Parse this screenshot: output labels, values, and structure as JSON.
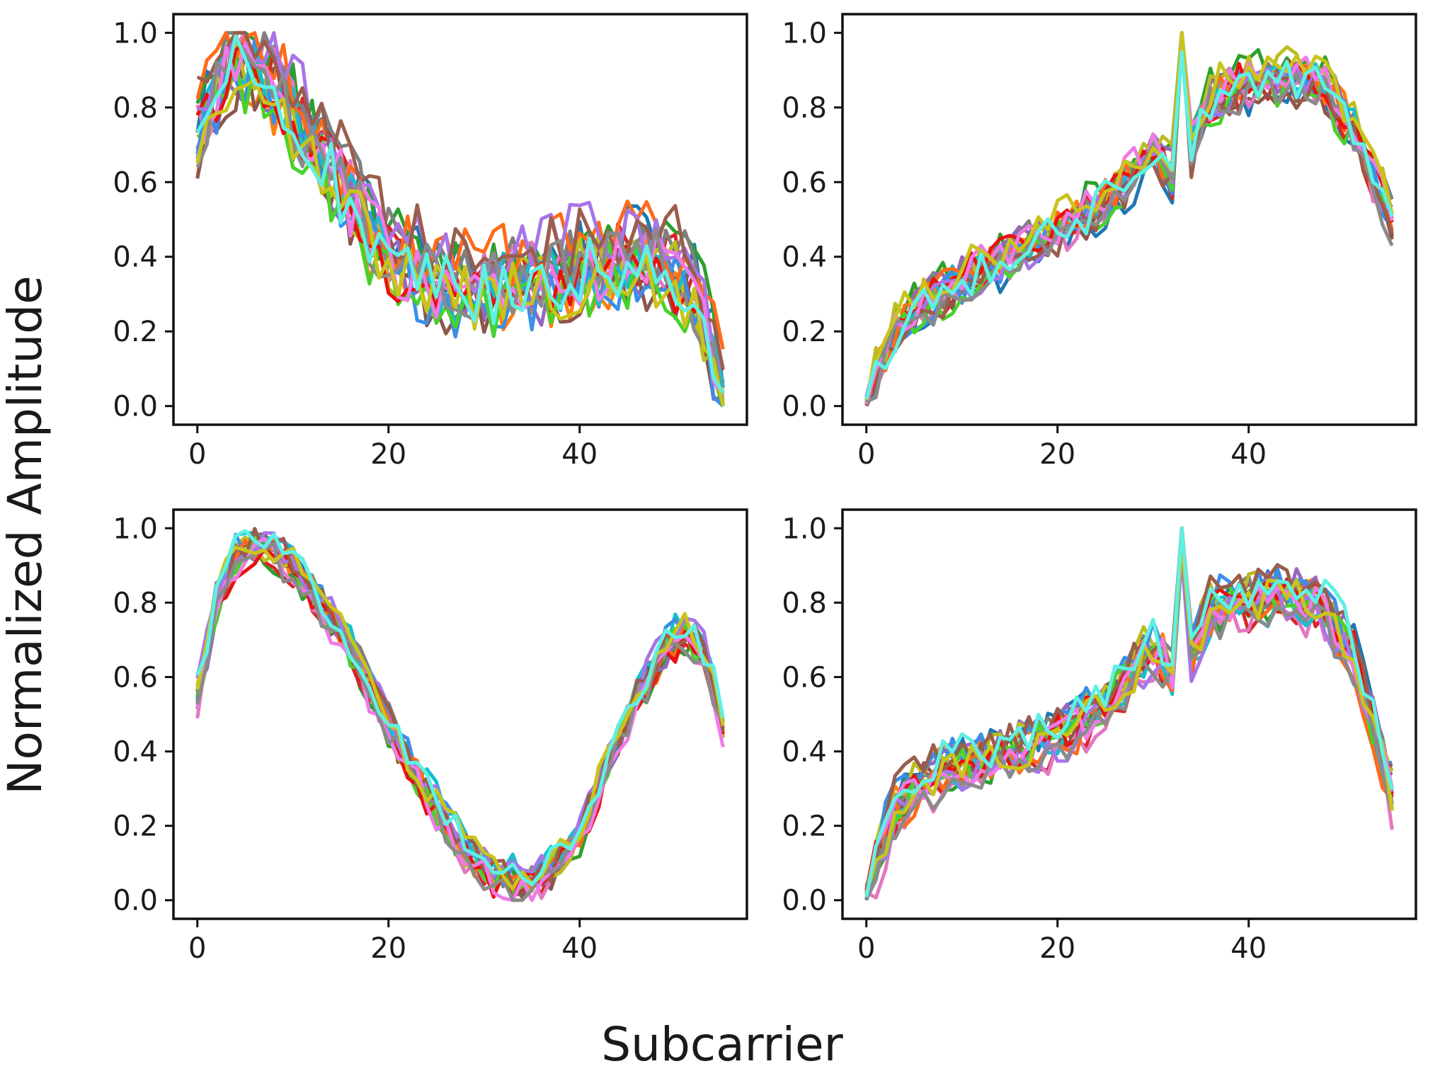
{
  "figure": {
    "xlabel": "Subcarrier",
    "ylabel": "Normalized Amplitude"
  },
  "colors": [
    "#1f77b4",
    "#ff7f0e",
    "#2ca02c",
    "#d62728",
    "#9467bd",
    "#8c564b",
    "#e377c2",
    "#7f7f7f",
    "#bcbd22",
    "#17becf",
    "#3a8fe8",
    "#ff6a1a",
    "#48d12c",
    "#e8120c",
    "#a875e8",
    "#9a5d4c",
    "#f07ae8",
    "#8a8a8a",
    "#c9c41a",
    "#5ff0e4"
  ],
  "chart_data": [
    {
      "type": "line",
      "panel": "top-left",
      "xlim": [
        -2.5,
        57.5
      ],
      "ylim": [
        -0.05,
        1.05
      ],
      "xticks": [
        0,
        20,
        40
      ],
      "yticks": [
        0.0,
        0.2,
        0.4,
        0.6,
        0.8,
        1.0
      ],
      "x_range": [
        0,
        55
      ],
      "n_series": 20,
      "series_mean_profile": [
        [
          0,
          0.76
        ],
        [
          3,
          0.93
        ],
        [
          6,
          0.95
        ],
        [
          9,
          0.84
        ],
        [
          12,
          0.72
        ],
        [
          15,
          0.62
        ],
        [
          18,
          0.48
        ],
        [
          21,
          0.4
        ],
        [
          24,
          0.36
        ],
        [
          27,
          0.33
        ],
        [
          30,
          0.33
        ],
        [
          33,
          0.35
        ],
        [
          36,
          0.36
        ],
        [
          39,
          0.38
        ],
        [
          42,
          0.4
        ],
        [
          45,
          0.41
        ],
        [
          48,
          0.4
        ],
        [
          51,
          0.36
        ],
        [
          53,
          0.25
        ],
        [
          55,
          0.03
        ]
      ],
      "spread": 0.09
    },
    {
      "type": "line",
      "panel": "top-right",
      "xlim": [
        -2.5,
        57.5
      ],
      "ylim": [
        -0.05,
        1.05
      ],
      "xticks": [
        0,
        20,
        40
      ],
      "yticks": [
        0.0,
        0.2,
        0.4,
        0.6,
        0.8,
        1.0
      ],
      "x_range": [
        0,
        55
      ],
      "n_series": 20,
      "series_mean_profile": [
        [
          0,
          0.02
        ],
        [
          3,
          0.2
        ],
        [
          6,
          0.27
        ],
        [
          9,
          0.32
        ],
        [
          12,
          0.36
        ],
        [
          15,
          0.4
        ],
        [
          18,
          0.44
        ],
        [
          21,
          0.48
        ],
        [
          24,
          0.53
        ],
        [
          27,
          0.6
        ],
        [
          30,
          0.68
        ],
        [
          32,
          0.62
        ],
        [
          33,
          1.0
        ],
        [
          34,
          0.68
        ],
        [
          36,
          0.82
        ],
        [
          40,
          0.86
        ],
        [
          44,
          0.88
        ],
        [
          48,
          0.85
        ],
        [
          51,
          0.74
        ],
        [
          55,
          0.5
        ]
      ],
      "spread": 0.05
    },
    {
      "type": "line",
      "panel": "bottom-left",
      "xlim": [
        -2.5,
        57.5
      ],
      "ylim": [
        -0.05,
        1.05
      ],
      "xticks": [
        0,
        20,
        40
      ],
      "yticks": [
        0.0,
        0.2,
        0.4,
        0.6,
        0.8,
        1.0
      ],
      "x_range": [
        0,
        55
      ],
      "n_series": 20,
      "series_mean_profile": [
        [
          0,
          0.55
        ],
        [
          2,
          0.8
        ],
        [
          4,
          0.93
        ],
        [
          7,
          0.96
        ],
        [
          10,
          0.9
        ],
        [
          13,
          0.8
        ],
        [
          16,
          0.68
        ],
        [
          19,
          0.52
        ],
        [
          22,
          0.38
        ],
        [
          25,
          0.25
        ],
        [
          28,
          0.14
        ],
        [
          31,
          0.07
        ],
        [
          34,
          0.05
        ],
        [
          37,
          0.08
        ],
        [
          40,
          0.18
        ],
        [
          43,
          0.38
        ],
        [
          46,
          0.55
        ],
        [
          49,
          0.68
        ],
        [
          51,
          0.72
        ],
        [
          53,
          0.66
        ],
        [
          55,
          0.48
        ]
      ],
      "spread": 0.04
    },
    {
      "type": "line",
      "panel": "bottom-right",
      "xlim": [
        -2.5,
        57.5
      ],
      "ylim": [
        -0.05,
        1.05
      ],
      "xticks": [
        0,
        20,
        40
      ],
      "yticks": [
        0.0,
        0.2,
        0.4,
        0.6,
        0.8,
        1.0
      ],
      "x_range": [
        0,
        55
      ],
      "n_series": 20,
      "series_mean_profile": [
        [
          0,
          0.02
        ],
        [
          3,
          0.25
        ],
        [
          6,
          0.32
        ],
        [
          9,
          0.35
        ],
        [
          12,
          0.37
        ],
        [
          15,
          0.39
        ],
        [
          18,
          0.42
        ],
        [
          21,
          0.45
        ],
        [
          24,
          0.5
        ],
        [
          27,
          0.58
        ],
        [
          30,
          0.68
        ],
        [
          32,
          0.62
        ],
        [
          33,
          1.0
        ],
        [
          34,
          0.66
        ],
        [
          36,
          0.78
        ],
        [
          40,
          0.8
        ],
        [
          44,
          0.82
        ],
        [
          48,
          0.78
        ],
        [
          51,
          0.66
        ],
        [
          55,
          0.28
        ]
      ],
      "spread": 0.05
    }
  ]
}
